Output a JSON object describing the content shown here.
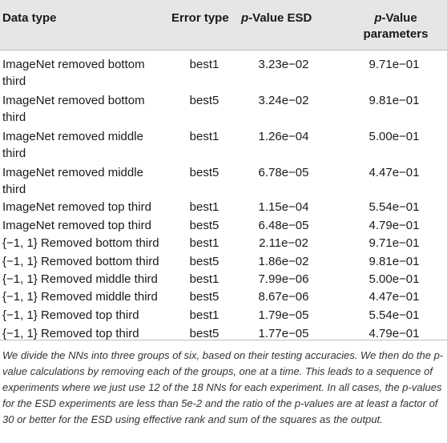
{
  "header": {
    "data_type": "Data type",
    "error_type": "Error type",
    "p_value_esd_italic": "p",
    "p_value_esd_rest": "-Value ESD",
    "p_value_params_italic": "p",
    "p_value_params_rest": "-Value",
    "p_value_params_line2": "parameters"
  },
  "rows": [
    {
      "data_type_line1": "ImageNet removed bottom",
      "data_type_line2": "third",
      "error_type": "best1",
      "p_esd": "3.23e−02",
      "p_params": "9.71e−01"
    },
    {
      "data_type_line1": "ImageNet removed bottom",
      "data_type_line2": "third",
      "error_type": "best5",
      "p_esd": "3.24e−02",
      "p_params": "9.81e−01"
    },
    {
      "data_type_line1": "ImageNet removed middle",
      "data_type_line2": "third",
      "error_type": "best1",
      "p_esd": "1.26e−04",
      "p_params": "5.00e−01"
    },
    {
      "data_type_line1": "ImageNet removed middle",
      "data_type_line2": "third",
      "error_type": "best5",
      "p_esd": "6.78e−05",
      "p_params": "4.47e−01"
    },
    {
      "data_type_line1": "ImageNet removed top third",
      "error_type": "best1",
      "p_esd": "1.15e−04",
      "p_params": "5.54e−01"
    },
    {
      "data_type_line1": "ImageNet removed top third",
      "error_type": "best5",
      "p_esd": "6.48e−05",
      "p_params": "4.79e−01"
    },
    {
      "data_type_line1": "{−1, 1} Removed bottom third",
      "error_type": "best1",
      "p_esd": "2.11e−02",
      "p_params": "9.71e−01"
    },
    {
      "data_type_line1": "{−1, 1} Removed bottom third",
      "error_type": "best5",
      "p_esd": "1.86e−02",
      "p_params": "9.81e−01"
    },
    {
      "data_type_line1": "{−1, 1} Removed middle third",
      "error_type": "best1",
      "p_esd": "7.99e−06",
      "p_params": "5.00e−01"
    },
    {
      "data_type_line1": "{−1, 1} Removed middle third",
      "error_type": "best5",
      "p_esd": "8.67e−06",
      "p_params": "4.47e−01"
    },
    {
      "data_type_line1": "{−1, 1} Removed top third",
      "error_type": "best1",
      "p_esd": "1.79e−05",
      "p_params": "5.54e−01"
    },
    {
      "data_type_line1": "{−1, 1} Removed top third",
      "error_type": "best5",
      "p_esd": "1.77e−05",
      "p_params": "4.79e−01"
    }
  ],
  "footnote": "We divide the NNs into three groups of six, based on their testing accuracies. We then do the p-value calculations by removing each of the groups, one at a time. This leads to a sequence of experiments where we just use 12 of the 18 NNs for each experiment. In all cases, the p-values for the ESD experiments are less than 5e-2 and the ratio of the p-values are at least a factor of 30 or better for the ESD using effective rank and sum of the squares as the output."
}
